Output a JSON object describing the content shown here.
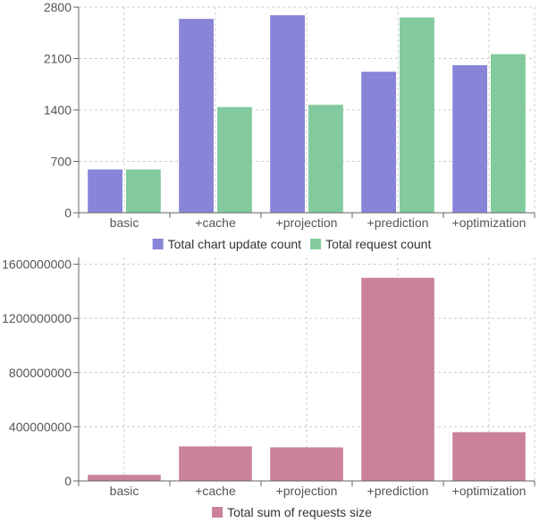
{
  "chart_data": [
    {
      "type": "bar",
      "categories": [
        "basic",
        "+cache",
        "+projection",
        "+prediction",
        "+optimization"
      ],
      "series": [
        {
          "name": "Total chart update count",
          "color": "#8884d8",
          "values": [
            590,
            2640,
            2690,
            1920,
            2010
          ]
        },
        {
          "name": "Total request count",
          "color": "#82ca9d",
          "values": [
            590,
            1440,
            1470,
            2660,
            2160
          ]
        }
      ],
      "yticks": [
        0,
        700,
        1400,
        2100,
        2800
      ],
      "ylim": [
        0,
        2800
      ],
      "grid": true,
      "legend_position": "bottom"
    },
    {
      "type": "bar",
      "categories": [
        "basic",
        "+cache",
        "+projection",
        "+prediction",
        "+optimization"
      ],
      "series": [
        {
          "name": "Total sum of requests size",
          "color": "#ca8299",
          "values": [
            45000000,
            255000000,
            248000000,
            1500000000,
            360000000
          ]
        }
      ],
      "yticks": [
        0,
        400000000,
        800000000,
        1200000000,
        1600000000
      ],
      "ylim": [
        0,
        1650000000
      ],
      "grid": true,
      "legend_position": "bottom"
    }
  ]
}
